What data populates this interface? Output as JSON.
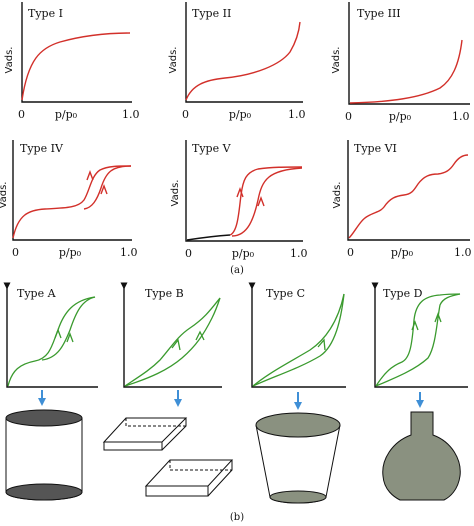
{
  "part_a": {
    "y_label": "Vads.",
    "x_label": "p/p₀",
    "x_start": "0",
    "x_end": "1.0",
    "caption": "(a)",
    "panels": [
      {
        "id": "I",
        "title": "Type I"
      },
      {
        "id": "II",
        "title": "Type II"
      },
      {
        "id": "III",
        "title": "Type III"
      },
      {
        "id": "IV",
        "title": "Type IV"
      },
      {
        "id": "V",
        "title": "Type V"
      },
      {
        "id": "VI",
        "title": "Type VI"
      }
    ]
  },
  "part_b": {
    "caption": "(b)",
    "panels": [
      {
        "id": "A",
        "title": "Type A",
        "pore_shape": "open cylinder"
      },
      {
        "id": "B",
        "title": "Type B",
        "pore_shape": "parallel slit plates"
      },
      {
        "id": "C",
        "title": "Type C",
        "pore_shape": "truncated cone"
      },
      {
        "id": "D",
        "title": "Type D",
        "pore_shape": "ink-bottle flask"
      }
    ]
  },
  "colors": {
    "isotherm_curve": "#d2302a",
    "hysteresis_curve": "#3a9a2e",
    "arrow_blue": "#3f8fd6",
    "pore_fill": "#8a9180",
    "pore_dark": "#555555"
  }
}
